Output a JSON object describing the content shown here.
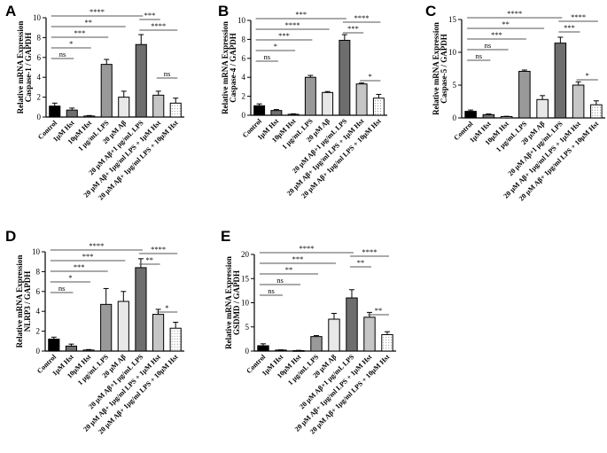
{
  "chart_data": [
    {
      "type": "bar",
      "panel": "A",
      "ylabel": [
        "Relative mRNA Expression",
        "Caspase-1 / GAPDH"
      ],
      "ylim": [
        0,
        10
      ],
      "yticks": [
        0,
        2,
        4,
        6,
        8,
        10
      ],
      "categories": [
        "Control",
        "1μM Hst",
        "10μM Hst",
        "1 μg/mL LPS",
        "20 μM Aβ",
        "20 μM Aβ+1 μg/mL LPS",
        "20 μM Aβ+ 1μg/ml LPS + 1μM Hst",
        "20 μM Aβ+ 1μg/ml LPS + 10μM Hst"
      ],
      "values": [
        1.1,
        0.7,
        0.1,
        5.3,
        2.0,
        7.3,
        2.2,
        1.4
      ],
      "errors": [
        0.3,
        0.2,
        0.05,
        0.5,
        0.6,
        1.0,
        0.4,
        0.5
      ],
      "fills": [
        "#000000",
        "#707070",
        "#f4f4f4",
        "#999999",
        "#e8e8e8",
        "#6e6e6e",
        "#c6c6c6",
        "#ffffff"
      ],
      "significance": [
        {
          "from": 0,
          "to": 5,
          "label": "****"
        },
        {
          "from": 0,
          "to": 4,
          "label": "**"
        },
        {
          "from": 0,
          "to": 3,
          "label": "***"
        },
        {
          "from": 0,
          "to": 2,
          "label": "*"
        },
        {
          "from": 0,
          "to": 1,
          "label": "ns"
        },
        {
          "from": 5,
          "to": 6,
          "label": "***"
        },
        {
          "from": 5,
          "to": 7,
          "label": "****"
        },
        {
          "from": 6,
          "to": 7,
          "label": "ns"
        }
      ]
    },
    {
      "type": "bar",
      "panel": "B",
      "ylabel": [
        "Relative mRNA Expression",
        "Caspase-4 / GAPDH"
      ],
      "ylim": [
        0,
        10
      ],
      "yticks": [
        0,
        2,
        4,
        6,
        8,
        10
      ],
      "categories": [
        "Control",
        "1μM Hst",
        "10μM Hst",
        "1 μg/mL LPS",
        "20 μM Aβ",
        "20 μM Aβ+1 μg/mL LPS",
        "20 μM Aβ+ 1μg/ml LPS + 1μM Hst",
        "20 μM Aβ+ 1μg/ml LPS + 10μM Hst"
      ],
      "values": [
        1.0,
        0.5,
        0.1,
        4.0,
        2.4,
        7.9,
        3.3,
        1.8
      ],
      "errors": [
        0.2,
        0.1,
        0.05,
        0.2,
        0.1,
        0.6,
        0.1,
        0.4
      ],
      "fills": [
        "#000000",
        "#707070",
        "#f4f4f4",
        "#999999",
        "#e8e8e8",
        "#6e6e6e",
        "#c6c6c6",
        "#ffffff"
      ],
      "significance": [
        {
          "from": 0,
          "to": 5,
          "label": "***"
        },
        {
          "from": 0,
          "to": 4,
          "label": "****"
        },
        {
          "from": 0,
          "to": 3,
          "label": "***"
        },
        {
          "from": 0,
          "to": 2,
          "label": "*"
        },
        {
          "from": 0,
          "to": 1,
          "label": "ns"
        },
        {
          "from": 5,
          "to": 7,
          "label": "****"
        },
        {
          "from": 5,
          "to": 6,
          "label": "***"
        },
        {
          "from": 6,
          "to": 7,
          "label": "*"
        }
      ]
    },
    {
      "type": "bar",
      "panel": "C",
      "ylabel": [
        "Relative mRNA Expression",
        "Caspase-5 / GAPDH"
      ],
      "ylim": [
        0,
        15
      ],
      "yticks": [
        0,
        5,
        10,
        15
      ],
      "categories": [
        "Control",
        "1μM Hst",
        "10μM Hst",
        "1 μg/mL LPS",
        "20 μM Aβ",
        "20 μM Aβ+1 μg/mL LPS",
        "20 μM Aβ+ 1μg/ml LPS + 1μM Hst",
        "20 μM Aβ+ 1μg/ml LPS + 10μM Hst"
      ],
      "values": [
        1.0,
        0.5,
        0.2,
        7.1,
        2.8,
        11.4,
        5.0,
        2.0
      ],
      "errors": [
        0.2,
        0.1,
        0.05,
        0.2,
        0.6,
        0.9,
        0.5,
        0.6
      ],
      "fills": [
        "#000000",
        "#707070",
        "#f4f4f4",
        "#999999",
        "#e8e8e8",
        "#6e6e6e",
        "#c6c6c6",
        "#ffffff"
      ],
      "significance": [
        {
          "from": 0,
          "to": 5,
          "label": "****"
        },
        {
          "from": 0,
          "to": 4,
          "label": "**"
        },
        {
          "from": 0,
          "to": 3,
          "label": "***"
        },
        {
          "from": 0,
          "to": 2,
          "label": "ns"
        },
        {
          "from": 0,
          "to": 1,
          "label": "ns"
        },
        {
          "from": 5,
          "to": 7,
          "label": "****"
        },
        {
          "from": 5,
          "to": 6,
          "label": "***"
        },
        {
          "from": 6,
          "to": 7,
          "label": "*"
        }
      ]
    },
    {
      "type": "bar",
      "panel": "D",
      "ylabel": [
        "Relative mRNA Expression",
        "NLRP3 / GAPDH"
      ],
      "ylim": [
        0,
        10
      ],
      "yticks": [
        0,
        2,
        4,
        6,
        8,
        10
      ],
      "categories": [
        "Control",
        "1μM Hst",
        "10μM Hst",
        "1 μg/mL LPS",
        "20 μM Aβ",
        "20 μM Aβ+1 μg/mL LPS",
        "20 μM Aβ+ 1μg/ml LPS + 1μM Hst",
        "20 μM Aβ+ 1μg/ml LPS + 10μM Hst"
      ],
      "values": [
        1.2,
        0.5,
        0.1,
        4.7,
        5.0,
        8.4,
        3.7,
        2.3
      ],
      "errors": [
        0.2,
        0.2,
        0.05,
        1.6,
        1.0,
        0.9,
        0.5,
        0.6
      ],
      "fills": [
        "#000000",
        "#707070",
        "#f4f4f4",
        "#999999",
        "#e8e8e8",
        "#6e6e6e",
        "#c6c6c6",
        "#ffffff"
      ],
      "significance": [
        {
          "from": 0,
          "to": 5,
          "label": "****"
        },
        {
          "from": 0,
          "to": 4,
          "label": "***"
        },
        {
          "from": 0,
          "to": 3,
          "label": "***"
        },
        {
          "from": 0,
          "to": 2,
          "label": "*"
        },
        {
          "from": 0,
          "to": 1,
          "label": "ns"
        },
        {
          "from": 5,
          "to": 7,
          "label": "****"
        },
        {
          "from": 5,
          "to": 6,
          "label": "**"
        },
        {
          "from": 6,
          "to": 7,
          "label": "*"
        }
      ]
    },
    {
      "type": "bar",
      "panel": "E",
      "ylabel": [
        "Relative mRNA Expression",
        "GSDMD / GAPDH"
      ],
      "ylim": [
        0,
        20
      ],
      "yticks": [
        0,
        5,
        10,
        15,
        20
      ],
      "categories": [
        "Control",
        "1μM Hst",
        "10μM Hst",
        "1 μg/mL LPS",
        "20 μM Aβ",
        "20 μM Aβ+1 μg/mL LPS",
        "20 μM Aβ+ 1μg/ml LPS + 1μM Hst",
        "20 μM Aβ+ 1μg/ml LPS + 10μM Hst"
      ],
      "values": [
        1.1,
        0.2,
        0.1,
        3.0,
        6.6,
        11.0,
        7.0,
        3.4
      ],
      "errors": [
        0.4,
        0.05,
        0.05,
        0.2,
        1.2,
        1.7,
        1.0,
        0.6
      ],
      "fills": [
        "#000000",
        "#707070",
        "#f4f4f4",
        "#999999",
        "#e8e8e8",
        "#6e6e6e",
        "#c6c6c6",
        "#ffffff"
      ],
      "significance": [
        {
          "from": 0,
          "to": 5,
          "label": "****"
        },
        {
          "from": 0,
          "to": 4,
          "label": "***"
        },
        {
          "from": 0,
          "to": 3,
          "label": "**"
        },
        {
          "from": 0,
          "to": 2,
          "label": "ns"
        },
        {
          "from": 0,
          "to": 1,
          "label": "ns"
        },
        {
          "from": 5,
          "to": 7,
          "label": "****"
        },
        {
          "from": 5,
          "to": 6,
          "label": "**"
        },
        {
          "from": 6,
          "to": 7,
          "label": "**"
        }
      ]
    }
  ]
}
